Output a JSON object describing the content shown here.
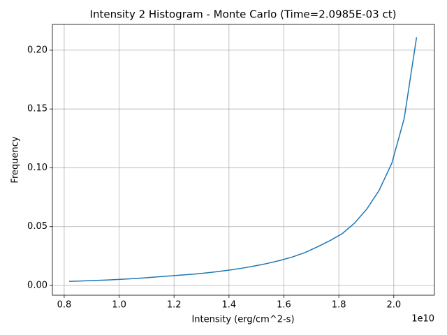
{
  "chart_data": {
    "type": "line",
    "title": "Intensity 2 Histogram - Monte Carlo (Time=2.0985E-03 ct)",
    "xlabel": "Intensity (erg/cm^2-s)",
    "ylabel": "Frequency",
    "x_offset_label": "1e10",
    "x": [
      0.818,
      0.863,
      0.908,
      0.954,
      0.999,
      1.044,
      1.089,
      1.134,
      1.18,
      1.225,
      1.27,
      1.315,
      1.36,
      1.406,
      1.451,
      1.496,
      1.541,
      1.586,
      1.632,
      1.677,
      1.722,
      1.767,
      1.812,
      1.857,
      1.902,
      1.947,
      1.993,
      2.038,
      2.083
    ],
    "values": [
      0.0035,
      0.0038,
      0.0042,
      0.0046,
      0.0051,
      0.0057,
      0.0064,
      0.0072,
      0.008,
      0.0088,
      0.0096,
      0.0106,
      0.0118,
      0.0132,
      0.0148,
      0.0167,
      0.0188,
      0.0213,
      0.0243,
      0.028,
      0.0328,
      0.038,
      0.044,
      0.053,
      0.065,
      0.081,
      0.104,
      0.142,
      0.211
    ],
    "color": "#1f77b4",
    "xlim": [
      0.757,
      2.148
    ],
    "ylim": [
      -0.0083,
      0.2219
    ],
    "xticks": [
      0.8,
      {
        "value": 1,
        "label": "1.0"
      },
      1.2,
      1.4,
      1.6,
      1.8,
      {
        "value": 2,
        "label": "2.0"
      }
    ],
    "yticks": [
      {
        "value": 0,
        "label": "0.00"
      },
      0.05,
      {
        "value": 0.1,
        "label": "0.10"
      },
      0.15,
      {
        "value": 0.2,
        "label": "0.20"
      }
    ],
    "grid": true
  }
}
